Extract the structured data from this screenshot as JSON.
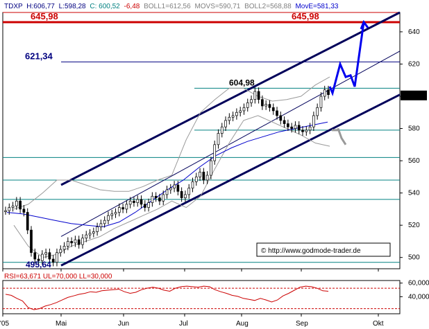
{
  "header": {
    "symbol": "TDXP",
    "high": "H:606,77",
    "low": "L:598,28",
    "close": "C: 600,52",
    "change": "-6,48",
    "boll1": "BOLL1=612,56",
    "movs": "MOVS=590,71",
    "boll2": "BOLL2=568,88",
    "move": "MovE=581,33"
  },
  "rsi_header": "RSI=63,671 UL=70,000 LL=30,000",
  "copyright": "© http://www.godmode-trader.de",
  "colors": {
    "header_symbol": "#000080",
    "close": "#008080",
    "change": "#cc0000",
    "boll": "#808080",
    "move": "#0000cc",
    "resistance": "#cc0000",
    "level": "#000080",
    "channel": "#00005a",
    "projection": "#0000ee",
    "alt_projection": "#999999",
    "fib": "#008080",
    "rsi": "#cc0000",
    "candle": "#000000"
  },
  "chart_data": [
    {
      "type": "candlestick",
      "title": "TDXP",
      "x_ticks": [
        "'05",
        "Mai",
        "Jun",
        "Jul",
        "Aug",
        "Sep",
        "Okt"
      ],
      "y_ticks": [
        500,
        520,
        540,
        560,
        580,
        600,
        620,
        640
      ],
      "ylim": [
        493,
        652
      ],
      "last_price_label": "600,52",
      "annotations": [
        {
          "text": "645,98",
          "value": 645.98
        },
        {
          "text": "621,34",
          "value": 621.34
        },
        {
          "text": "604,98",
          "value": 604.98
        },
        {
          "text": "495,64",
          "value": 495.64
        }
      ],
      "horizontal_levels": [
        {
          "value": 652,
          "kind": "resistance"
        },
        {
          "value": 645.98,
          "kind": "resistance"
        },
        {
          "value": 621.34,
          "kind": "level"
        },
        {
          "value": 604.98,
          "kind": "fib"
        },
        {
          "value": 579,
          "kind": "fib"
        },
        {
          "value": 562,
          "kind": "fib"
        },
        {
          "value": 548,
          "kind": "fib"
        },
        {
          "value": 536,
          "kind": "fib"
        },
        {
          "value": 497,
          "kind": "fib"
        }
      ],
      "closes": [
        529,
        531,
        532,
        535,
        530,
        528,
        517,
        503,
        499,
        498,
        502,
        503,
        499,
        497,
        503,
        505,
        507,
        510,
        509,
        511,
        508,
        512,
        514,
        515,
        516,
        519,
        521,
        523,
        526,
        527,
        528,
        531,
        530,
        533,
        535,
        534,
        536,
        533,
        531,
        534,
        538,
        537,
        535,
        539,
        542,
        543,
        545,
        541,
        537,
        539,
        543,
        547,
        550,
        553,
        548,
        551,
        560,
        570,
        577,
        581,
        585,
        587,
        588,
        590,
        591,
        593,
        596,
        598,
        603,
        598,
        594,
        595,
        593,
        591,
        588,
        585,
        583,
        581,
        580,
        582,
        579,
        578,
        579,
        581,
        588,
        593,
        600,
        604,
        601
      ],
      "moving_average": [
        528,
        527,
        525,
        523,
        521,
        520,
        519,
        522,
        528,
        535,
        542,
        548,
        556,
        563,
        568,
        572,
        575,
        578,
        580,
        582,
        584
      ],
      "bollinger_upper": [
        530,
        533,
        540,
        548,
        548,
        545,
        542,
        541,
        541,
        544,
        548,
        551,
        573,
        590,
        598,
        605,
        605,
        600,
        597,
        598,
        600,
        607,
        612
      ],
      "bollinger_lower": [
        520,
        507,
        500,
        502,
        507,
        510,
        513,
        518,
        522,
        526,
        530,
        535,
        531,
        538,
        555,
        571,
        585,
        588,
        584,
        580,
        576,
        571,
        569
      ],
      "channel_lines": [
        {
          "name": "upper",
          "from": [
            "Apr",
            545
          ],
          "to": [
            "Okt",
            652
          ]
        },
        {
          "name": "lower",
          "from": [
            "Apr",
            495
          ],
          "to": [
            "Okt",
            601
          ]
        },
        {
          "name": "middle",
          "from": [
            "Apr",
            513
          ],
          "to": [
            "Okt",
            628
          ]
        }
      ],
      "projection": [
        [
          596,
          606
        ],
        [
          600,
          602
        ],
        [
          611,
          620
        ],
        [
          619,
          612
        ],
        [
          626,
          613
        ],
        [
          632,
          606
        ],
        [
          645,
          646
        ]
      ],
      "alt_projection": [
        [
          608,
          580
        ],
        [
          613,
          574
        ],
        [
          619,
          570
        ]
      ]
    },
    {
      "type": "line",
      "title": "RSI=63,671 UL=70,000 LL=30,000",
      "y_ticks": [
        40,
        60
      ],
      "ylim": [
        20,
        85
      ],
      "upper_line": 70,
      "lower_line": 30,
      "values": [
        58,
        56,
        50,
        45,
        32,
        28,
        30,
        35,
        38,
        42,
        47,
        52,
        55,
        58,
        60,
        63,
        62,
        65,
        66,
        67,
        68,
        63,
        60,
        62,
        67,
        70,
        72,
        70,
        66,
        64,
        70,
        73,
        74,
        73,
        72,
        74,
        73,
        67,
        63,
        60,
        56,
        54,
        50,
        48,
        46,
        50,
        47,
        43,
        47,
        55,
        60,
        66,
        72,
        74,
        73,
        70,
        65,
        64
      ]
    }
  ]
}
